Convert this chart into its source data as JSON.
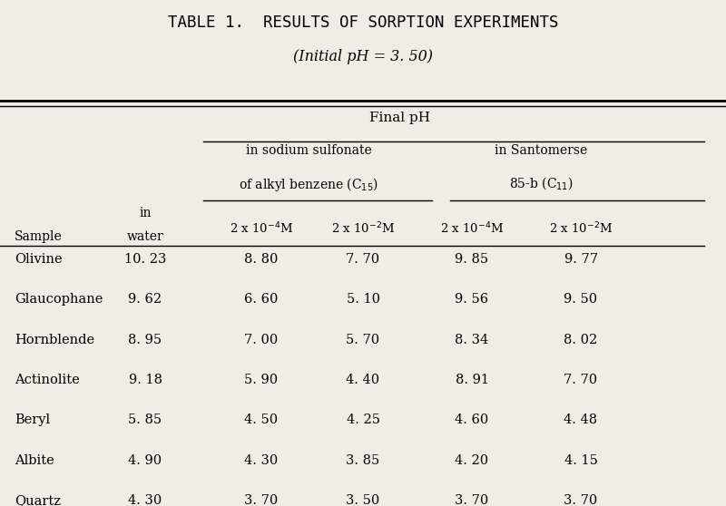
{
  "title": "TABLE 1.  RESULTS OF SORPTION EXPERIMENTS",
  "subtitle": "(Initial pH = 3. 50)",
  "background_color": "#f0ede4",
  "samples": [
    "Olivine",
    "Glaucophane",
    "Hornblende",
    "Actinolite",
    "Beryl",
    "Albite",
    "Quartz"
  ],
  "in_water": [
    "10. 23",
    "9. 62",
    "8. 95",
    "9. 18",
    "5. 85",
    "4. 90",
    "4. 30"
  ],
  "sodium_sulfonate_4": [
    "8. 80",
    "6. 60",
    "7. 00",
    "5. 90",
    "4. 50",
    "4. 30",
    "3. 70"
  ],
  "sodium_sulfonate_2": [
    "7. 70",
    "5. 10",
    "5. 70",
    "4. 40",
    "4. 25",
    "3. 85",
    "3. 50"
  ],
  "santomerse_4": [
    "9. 85",
    "9. 56",
    "8. 34",
    "8. 91",
    "4. 60",
    "4. 20",
    "3. 70"
  ],
  "santomerse_2": [
    "9. 77",
    "9. 50",
    "8. 02",
    "7. 70",
    "4. 48",
    "4. 15",
    "3. 70"
  ]
}
